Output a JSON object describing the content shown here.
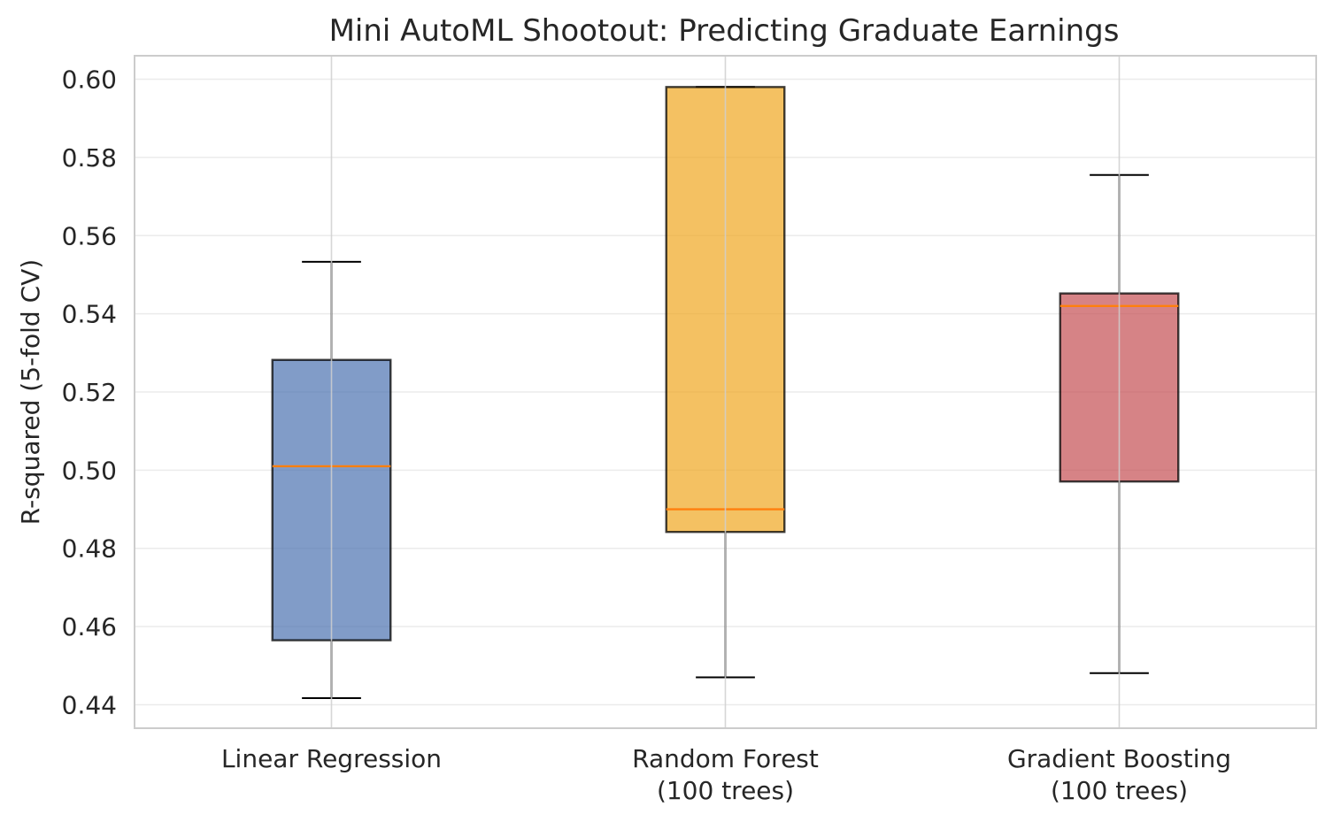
{
  "chart_data": {
    "type": "box",
    "title": "Mini AutoML Shootout: Predicting Graduate Earnings",
    "xlabel": "",
    "ylabel": "R-squared (5-fold CV)",
    "ylim": [
      0.434,
      0.606
    ],
    "yticks": [
      "0.44",
      "0.46",
      "0.48",
      "0.50",
      "0.52",
      "0.54",
      "0.56",
      "0.58",
      "0.60"
    ],
    "grid": true,
    "categories": [
      [
        "Linear Regression"
      ],
      [
        "Random Forest",
        "(100 trees)"
      ],
      [
        "Gradient Boosting",
        "(100 trees)"
      ]
    ],
    "boxes": [
      {
        "whisker_low": 0.4417,
        "q1": 0.4565,
        "median": 0.501,
        "q3": 0.5282,
        "whisker_high": 0.5533,
        "color": "#4c72b0"
      },
      {
        "whisker_low": 0.447,
        "q1": 0.4842,
        "median": 0.49,
        "q3": 0.598,
        "whisker_high": 0.598,
        "color": "#f0a720"
      },
      {
        "whisker_low": 0.4481,
        "q1": 0.4971,
        "median": 0.542,
        "q3": 0.5452,
        "whisker_high": 0.5755,
        "color": "#c44e52"
      }
    ],
    "median_color": "#ff7f0e"
  }
}
